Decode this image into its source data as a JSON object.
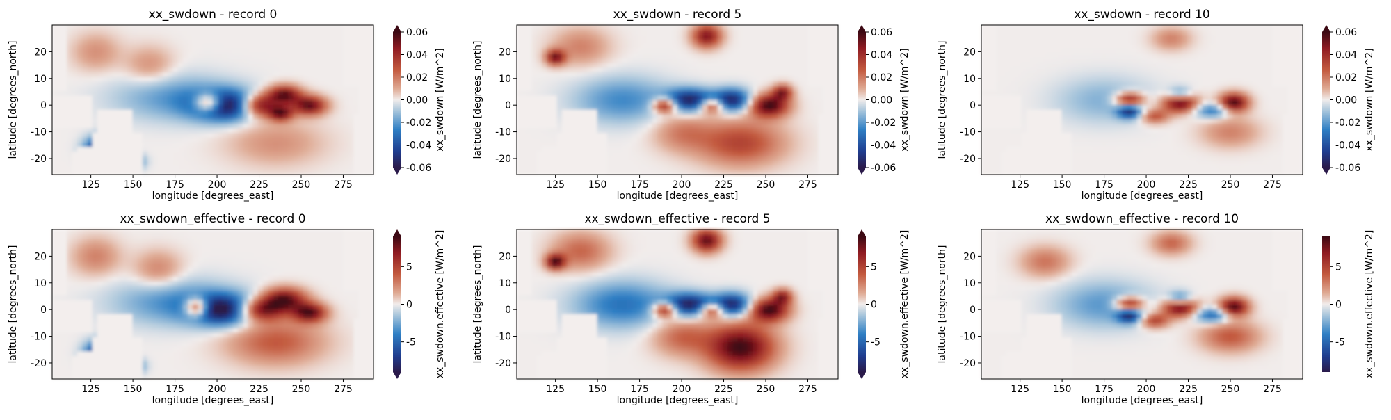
{
  "chart_data": [
    {
      "type": "heatmap",
      "title": "xx_swdown - record 0",
      "xlabel": "longitude [degrees_east]",
      "ylabel": "latitude [degrees_north]",
      "xlim": [
        102,
        293
      ],
      "ylim": [
        -26,
        30
      ],
      "xticks": [
        "125",
        "150",
        "175",
        "200",
        "225",
        "250",
        "275"
      ],
      "yticks": [
        "-20",
        "-10",
        "0",
        "10",
        "20"
      ],
      "colorbar": {
        "label": "xx_swdown [W/m^2]",
        "range": [
          -0.06,
          0.06
        ],
        "ticks": [
          "-0.06",
          "-0.04",
          "-0.02",
          "0.00",
          "0.02",
          "0.04",
          "0.06"
        ],
        "extend": "both"
      },
      "colormap": "balance",
      "features": [
        {
          "lon": 195,
          "lat": 1,
          "sign": 1.0,
          "sx": 6,
          "sy": 2.5
        },
        {
          "lon": 205,
          "lat": 0,
          "sign": -1.0,
          "sx": 14,
          "sy": 4
        },
        {
          "lon": 225,
          "lat": 0,
          "sign": 1.0,
          "sx": 8,
          "sy": 3
        },
        {
          "lon": 240,
          "lat": 4,
          "sign": 0.9,
          "sx": 7,
          "sy": 2.5
        },
        {
          "lon": 255,
          "lat": 0,
          "sign": 0.9,
          "sx": 7,
          "sy": 2.5
        },
        {
          "lon": 238,
          "lat": -3,
          "sign": 0.8,
          "sx": 5,
          "sy": 2
        },
        {
          "lon": 130,
          "lat": -16,
          "sign": -0.9,
          "sx": 6,
          "sy": 3
        },
        {
          "lon": 148,
          "lat": -21,
          "sign": -1.0,
          "sx": 5,
          "sy": 2
        },
        {
          "lon": 175,
          "lat": 3,
          "sign": -0.35,
          "sx": 25,
          "sy": 6
        },
        {
          "lon": 235,
          "lat": -14,
          "sign": 0.25,
          "sx": 20,
          "sy": 6
        },
        {
          "lon": 128,
          "lat": 20,
          "sign": 0.25,
          "sx": 10,
          "sy": 5
        },
        {
          "lon": 160,
          "lat": 15,
          "sign": 0.25,
          "sx": 10,
          "sy": 5
        }
      ]
    },
    {
      "type": "heatmap",
      "title": "xx_swdown - record 5",
      "xlabel": "longitude [degrees_east]",
      "ylabel": "latitude [degrees_north]",
      "xlim": [
        102,
        293
      ],
      "ylim": [
        -26,
        30
      ],
      "xticks": [
        "125",
        "150",
        "175",
        "200",
        "225",
        "250",
        "275"
      ],
      "yticks": [
        "-20",
        "-10",
        "0",
        "10",
        "20"
      ],
      "colorbar": {
        "label": "xx_swdown [W/m^2]",
        "range": [
          -0.06,
          0.06
        ],
        "ticks": [
          "-0.06",
          "-0.04",
          "-0.02",
          "0.00",
          "0.02",
          "0.04",
          "0.06"
        ],
        "extend": "both"
      },
      "colormap": "balance",
      "features": [
        {
          "lon": 190,
          "lat": 0,
          "sign": 0.9,
          "sx": 5,
          "sy": 2
        },
        {
          "lon": 205,
          "lat": 2,
          "sign": -0.9,
          "sx": 10,
          "sy": 3
        },
        {
          "lon": 218,
          "lat": 0,
          "sign": 0.8,
          "sx": 5,
          "sy": 2
        },
        {
          "lon": 230,
          "lat": 2,
          "sign": -0.9,
          "sx": 8,
          "sy": 3
        },
        {
          "lon": 252,
          "lat": 0,
          "sign": 1.0,
          "sx": 8,
          "sy": 3
        },
        {
          "lon": 260,
          "lat": 5,
          "sign": 0.7,
          "sx": 4,
          "sy": 2
        },
        {
          "lon": 215,
          "lat": 26,
          "sign": 0.8,
          "sx": 6,
          "sy": 3
        },
        {
          "lon": 125,
          "lat": 18,
          "sign": 0.8,
          "sx": 4,
          "sy": 2
        },
        {
          "lon": 235,
          "lat": -14,
          "sign": 0.55,
          "sx": 18,
          "sy": 6
        },
        {
          "lon": 165,
          "lat": 2,
          "sign": -0.4,
          "sx": 20,
          "sy": 6
        },
        {
          "lon": 140,
          "lat": 22,
          "sign": 0.3,
          "sx": 12,
          "sy": 5
        },
        {
          "lon": 200,
          "lat": -10,
          "sign": 0.3,
          "sx": 12,
          "sy": 5
        }
      ]
    },
    {
      "type": "heatmap",
      "title": "xx_swdown - record 10",
      "xlabel": "longitude [degrees_east]",
      "ylabel": "latitude [degrees_north]",
      "xlim": [
        102,
        293
      ],
      "ylim": [
        -26,
        30
      ],
      "xticks": [
        "125",
        "150",
        "175",
        "200",
        "225",
        "250",
        "275"
      ],
      "yticks": [
        "-20",
        "-10",
        "0",
        "10",
        "20"
      ],
      "colorbar": {
        "label": "xx_swdown [W/m^2]",
        "range": [
          -0.06,
          0.06
        ],
        "ticks": [
          "-0.06",
          "-0.04",
          "-0.02",
          "0.00",
          "0.02",
          "0.04",
          "0.06"
        ],
        "extend": "both"
      },
      "colormap": "balance",
      "features": [
        {
          "lon": 190,
          "lat": 2,
          "sign": 0.9,
          "sx": 6,
          "sy": 2
        },
        {
          "lon": 190,
          "lat": -2,
          "sign": -0.8,
          "sx": 5,
          "sy": 2
        },
        {
          "lon": 220,
          "lat": 1,
          "sign": 1.0,
          "sx": 7,
          "sy": 2.5
        },
        {
          "lon": 220,
          "lat": 4,
          "sign": -0.5,
          "sx": 5,
          "sy": 2
        },
        {
          "lon": 252,
          "lat": 1,
          "sign": 1.0,
          "sx": 6,
          "sy": 2.5
        },
        {
          "lon": 205,
          "lat": -4,
          "sign": 0.5,
          "sx": 6,
          "sy": 2
        },
        {
          "lon": 240,
          "lat": -2,
          "sign": -0.5,
          "sx": 8,
          "sy": 2
        },
        {
          "lon": 175,
          "lat": 2,
          "sign": -0.25,
          "sx": 20,
          "sy": 6
        },
        {
          "lon": 215,
          "lat": 25,
          "sign": 0.3,
          "sx": 8,
          "sy": 3
        },
        {
          "lon": 250,
          "lat": -10,
          "sign": 0.3,
          "sx": 12,
          "sy": 4
        }
      ]
    },
    {
      "type": "heatmap",
      "title": "xx_swdown_effective - record 0",
      "xlabel": "longitude [degrees_east]",
      "ylabel": "latitude [degrees_north]",
      "xlim": [
        102,
        293
      ],
      "ylim": [
        -26,
        30
      ],
      "xticks": [
        "125",
        "150",
        "175",
        "200",
        "225",
        "250",
        "275"
      ],
      "yticks": [
        "-20",
        "-10",
        "0",
        "10",
        "20"
      ],
      "colorbar": {
        "label": "xx_swdown.effective [W/m^2]",
        "range": [
          -9,
          9
        ],
        "ticks": [
          "-5",
          "0",
          "5"
        ],
        "extend": "both"
      },
      "colormap": "balance",
      "features": [
        {
          "lon": 188,
          "lat": 1,
          "sign": 1.0,
          "sx": 5,
          "sy": 2.5
        },
        {
          "lon": 205,
          "lat": 0,
          "sign": -1.0,
          "sx": 14,
          "sy": 4
        },
        {
          "lon": 225,
          "lat": 0,
          "sign": 1.0,
          "sx": 10,
          "sy": 3
        },
        {
          "lon": 240,
          "lat": 4,
          "sign": 0.9,
          "sx": 9,
          "sy": 3
        },
        {
          "lon": 255,
          "lat": -1,
          "sign": 0.9,
          "sx": 7,
          "sy": 2.5
        },
        {
          "lon": 130,
          "lat": -16,
          "sign": -0.9,
          "sx": 6,
          "sy": 3
        },
        {
          "lon": 148,
          "lat": -21,
          "sign": -1.0,
          "sx": 5,
          "sy": 2
        },
        {
          "lon": 175,
          "lat": 3,
          "sign": -0.4,
          "sx": 25,
          "sy": 6
        },
        {
          "lon": 235,
          "lat": -12,
          "sign": 0.45,
          "sx": 20,
          "sy": 6
        },
        {
          "lon": 128,
          "lat": 20,
          "sign": 0.3,
          "sx": 10,
          "sy": 5
        },
        {
          "lon": 165,
          "lat": 15,
          "sign": 0.3,
          "sx": 10,
          "sy": 5
        }
      ]
    },
    {
      "type": "heatmap",
      "title": "xx_swdown_effective - record 5",
      "xlabel": "longitude [degrees_east]",
      "ylabel": "latitude [degrees_north]",
      "xlim": [
        102,
        293
      ],
      "ylim": [
        -26,
        30
      ],
      "xticks": [
        "125",
        "150",
        "175",
        "200",
        "225",
        "250",
        "275"
      ],
      "yticks": [
        "-20",
        "-10",
        "0",
        "10",
        "20"
      ],
      "colorbar": {
        "label": "xx_swdown.effective [W/m^2]",
        "range": [
          -9,
          9
        ],
        "ticks": [
          "-5",
          "0",
          "5"
        ],
        "extend": "both"
      },
      "colormap": "balance",
      "features": [
        {
          "lon": 190,
          "lat": 0,
          "sign": 0.9,
          "sx": 5,
          "sy": 2
        },
        {
          "lon": 205,
          "lat": 2,
          "sign": -0.9,
          "sx": 10,
          "sy": 3
        },
        {
          "lon": 218,
          "lat": 0,
          "sign": 0.8,
          "sx": 5,
          "sy": 2
        },
        {
          "lon": 230,
          "lat": 2,
          "sign": -0.9,
          "sx": 8,
          "sy": 3
        },
        {
          "lon": 252,
          "lat": 0,
          "sign": 1.0,
          "sx": 8,
          "sy": 3
        },
        {
          "lon": 260,
          "lat": 5,
          "sign": 0.7,
          "sx": 4,
          "sy": 2
        },
        {
          "lon": 215,
          "lat": 26,
          "sign": 0.9,
          "sx": 6,
          "sy": 3
        },
        {
          "lon": 125,
          "lat": 18,
          "sign": 0.9,
          "sx": 4,
          "sy": 2
        },
        {
          "lon": 235,
          "lat": -14,
          "sign": 1.0,
          "sx": 14,
          "sy": 6
        },
        {
          "lon": 165,
          "lat": 2,
          "sign": -0.5,
          "sx": 20,
          "sy": 6
        },
        {
          "lon": 140,
          "lat": 22,
          "sign": 0.4,
          "sx": 12,
          "sy": 5
        },
        {
          "lon": 200,
          "lat": -10,
          "sign": 0.4,
          "sx": 12,
          "sy": 5
        }
      ]
    },
    {
      "type": "heatmap",
      "title": "xx_swdown_effective - record 10",
      "xlabel": "longitude [degrees_east]",
      "ylabel": "latitude [degrees_north]",
      "xlim": [
        102,
        293
      ],
      "ylim": [
        -26,
        30
      ],
      "xticks": [
        "125",
        "150",
        "175",
        "200",
        "225",
        "250",
        "275"
      ],
      "yticks": [
        "-20",
        "-10",
        "0",
        "10",
        "20"
      ],
      "colorbar": {
        "label": "xx_swdown.effective [W/m^2]",
        "range": [
          -9,
          9
        ],
        "ticks": [
          "-5",
          "0",
          "5"
        ],
        "extend": "none"
      },
      "colormap": "balance",
      "features": [
        {
          "lon": 190,
          "lat": 2,
          "sign": 0.9,
          "sx": 6,
          "sy": 2
        },
        {
          "lon": 190,
          "lat": -2,
          "sign": -0.8,
          "sx": 5,
          "sy": 2
        },
        {
          "lon": 220,
          "lat": 1,
          "sign": 1.0,
          "sx": 7,
          "sy": 2.5
        },
        {
          "lon": 220,
          "lat": 4,
          "sign": -0.6,
          "sx": 5,
          "sy": 2
        },
        {
          "lon": 252,
          "lat": 1,
          "sign": 1.0,
          "sx": 6,
          "sy": 2.5
        },
        {
          "lon": 205,
          "lat": -4,
          "sign": 0.6,
          "sx": 6,
          "sy": 2
        },
        {
          "lon": 240,
          "lat": -2,
          "sign": -0.6,
          "sx": 8,
          "sy": 2
        },
        {
          "lon": 175,
          "lat": 2,
          "sign": -0.35,
          "sx": 20,
          "sy": 6
        },
        {
          "lon": 215,
          "lat": 25,
          "sign": 0.4,
          "sx": 8,
          "sy": 3
        },
        {
          "lon": 250,
          "lat": -10,
          "sign": 0.45,
          "sx": 12,
          "sy": 4
        },
        {
          "lon": 140,
          "lat": 18,
          "sign": 0.35,
          "sx": 10,
          "sy": 4
        }
      ]
    }
  ]
}
